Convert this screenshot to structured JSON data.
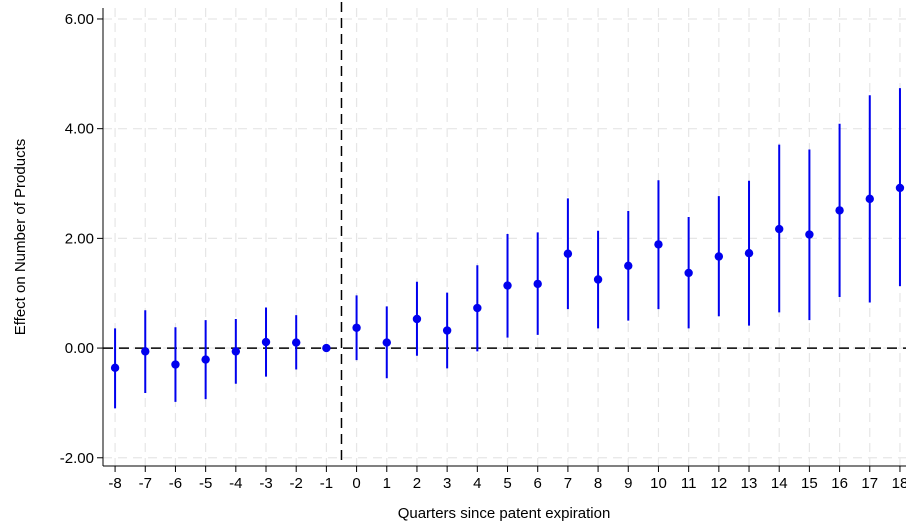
{
  "chart_data": {
    "type": "scatter",
    "title": "",
    "xlabel": "Quarters since patent expiration",
    "ylabel": "Effect on Number of Products",
    "x": [
      -8,
      -7,
      -6,
      -5,
      -4,
      -3,
      -2,
      -1,
      0,
      1,
      2,
      3,
      4,
      5,
      6,
      7,
      8,
      9,
      10,
      11,
      12,
      13,
      14,
      15,
      16,
      17,
      18
    ],
    "x_tick_labels": [
      "-8",
      "-7",
      "-6",
      "-5",
      "-4",
      "-3",
      "-2",
      "-1",
      "0",
      "1",
      "2",
      "3",
      "4",
      "5",
      "6",
      "7",
      "8",
      "9",
      "10",
      "11",
      "12",
      "13",
      "14",
      "15",
      "16",
      "17",
      "18"
    ],
    "series": [
      {
        "estimate": [
          -0.36,
          -0.06,
          -0.3,
          -0.21,
          -0.06,
          0.11,
          0.1,
          0.0,
          0.37,
          0.1,
          0.53,
          0.32,
          0.73,
          1.14,
          1.17,
          1.72,
          1.25,
          1.5,
          1.89,
          1.37,
          1.67,
          1.73,
          2.17,
          2.07,
          2.51,
          2.72,
          2.92
        ],
        "ci_lower": [
          -1.1,
          -0.82,
          -0.98,
          -0.93,
          -0.65,
          -0.52,
          -0.39,
          0.0,
          -0.22,
          -0.55,
          -0.14,
          -0.37,
          -0.06,
          0.19,
          0.24,
          0.71,
          0.36,
          0.5,
          0.71,
          0.36,
          0.58,
          0.41,
          0.65,
          0.51,
          0.93,
          0.83,
          1.13
        ],
        "ci_upper": [
          0.36,
          0.69,
          0.38,
          0.51,
          0.53,
          0.74,
          0.6,
          0.0,
          0.96,
          0.76,
          1.21,
          1.01,
          1.51,
          2.08,
          2.11,
          2.73,
          2.14,
          2.5,
          3.06,
          2.39,
          2.77,
          3.05,
          3.71,
          3.62,
          4.09,
          4.61,
          4.74
        ]
      }
    ],
    "y_ticks": [
      -2,
      0,
      2,
      4,
      6
    ],
    "y_tick_labels": [
      "-2.00",
      "0.00",
      "2.00",
      "4.00",
      "6.00"
    ],
    "xlim": [
      -8.4,
      18.2
    ],
    "ylim": [
      -2.15,
      6.2
    ],
    "reference_lines": {
      "horizontal_y": 0,
      "vertical_x": -0.5
    },
    "grid": true,
    "legend": "none",
    "colors": {
      "marker": "#0000ee",
      "ci_line": "#0000ee",
      "grid": "#e6e6e6",
      "reference": "#000000"
    }
  }
}
